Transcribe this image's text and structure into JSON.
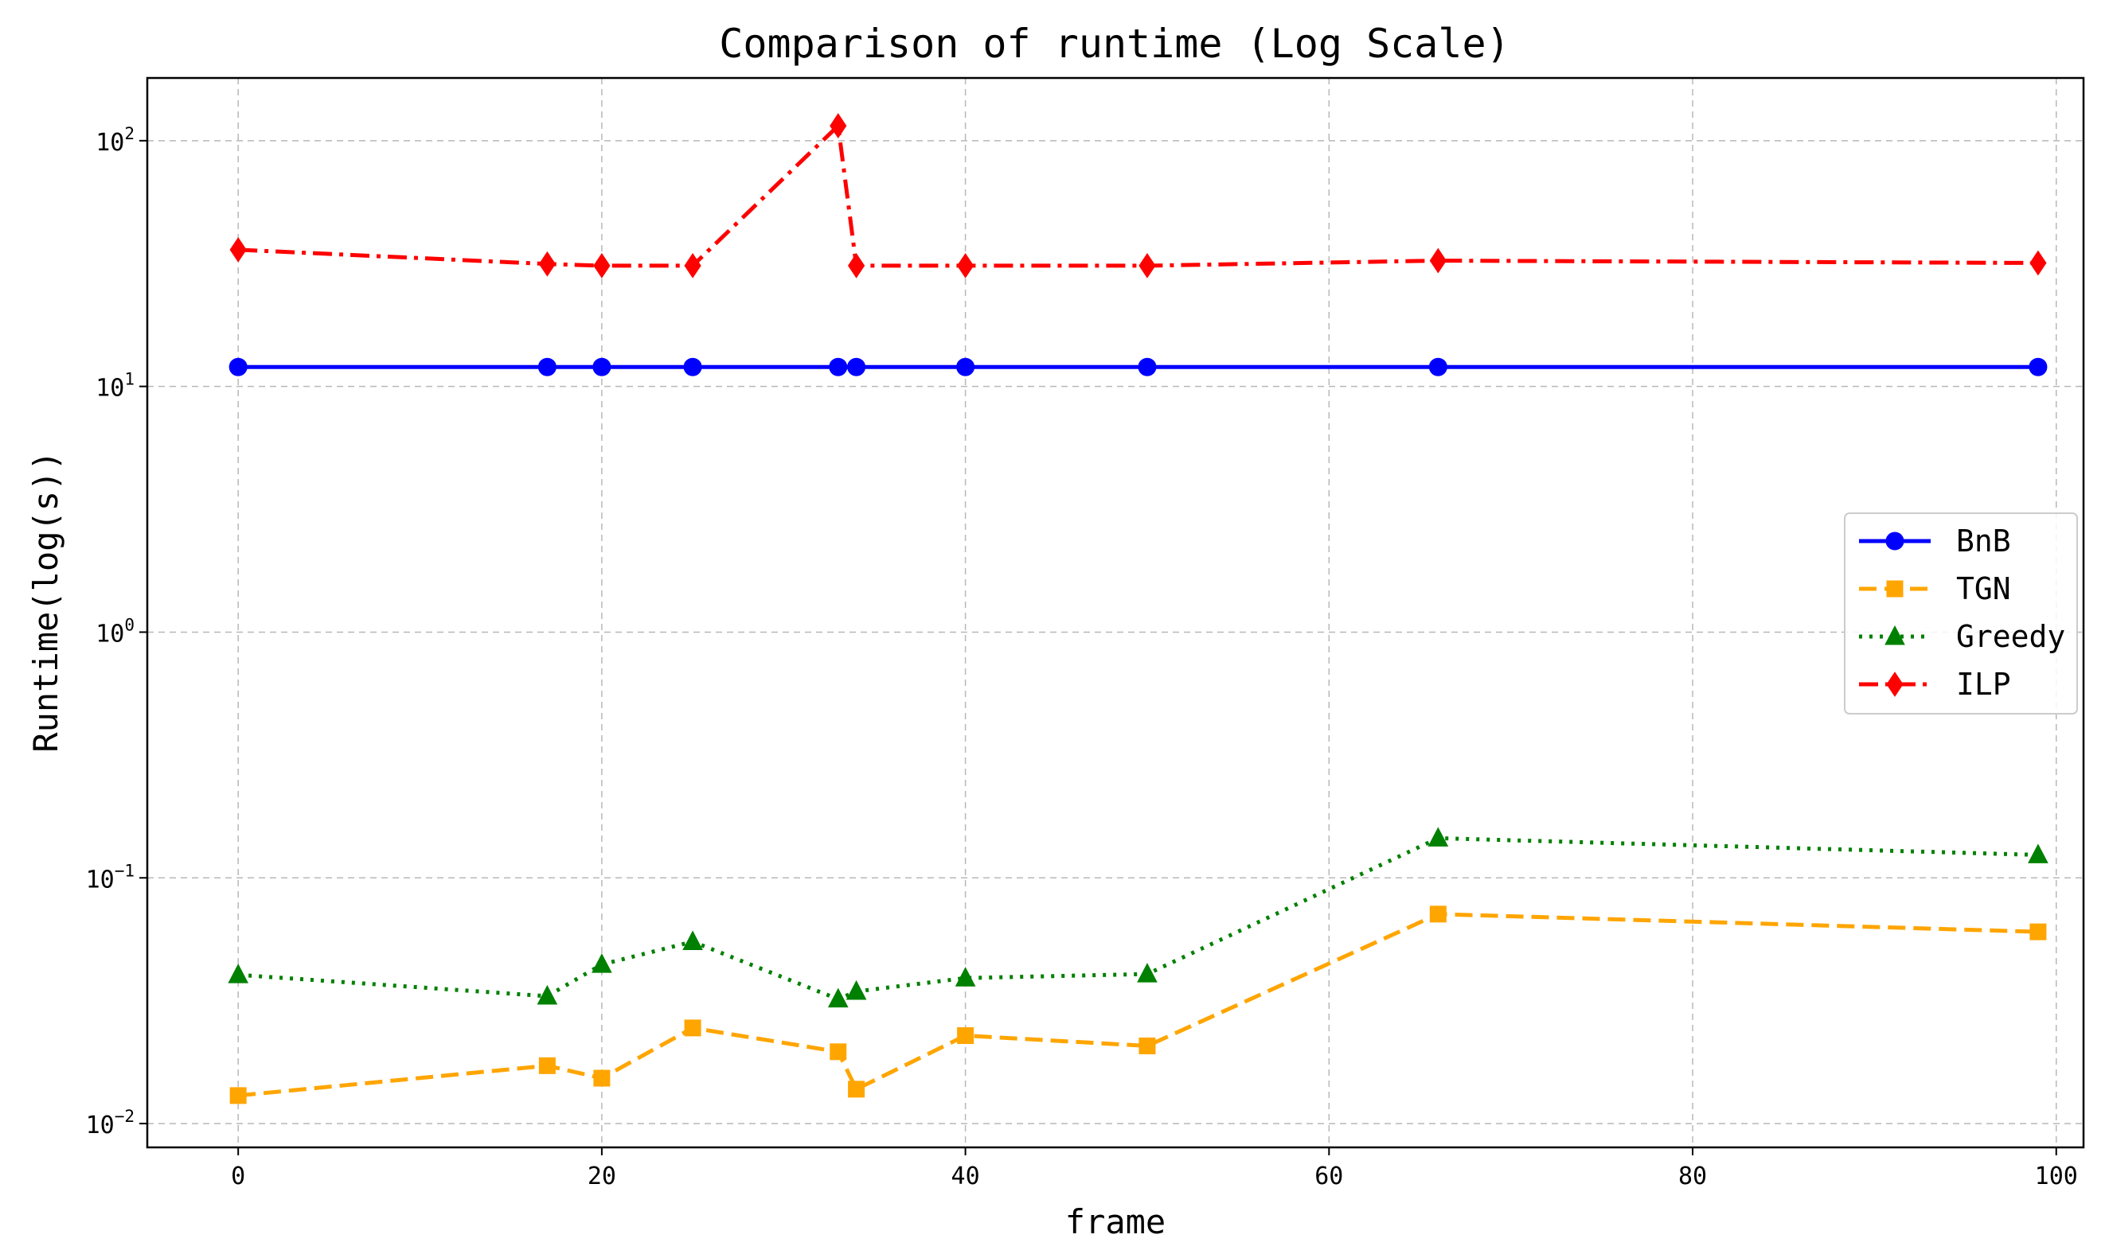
{
  "chart_data": {
    "type": "line",
    "title": "Comparison of runtime (Log Scale)",
    "xlabel": "frame",
    "ylabel": "Runtime(log(s))",
    "xlim": [
      -5,
      101.5
    ],
    "ylim": [
      0.008,
      180
    ],
    "yscale": "log",
    "grid": true,
    "legend_position": "center-right",
    "x_ticks": [
      0,
      20,
      40,
      60,
      80,
      100
    ],
    "x_tick_labels": [
      "0",
      "20",
      "40",
      "60",
      "80",
      "100"
    ],
    "y_ticks": [
      0.01,
      0.1,
      1,
      10,
      100
    ],
    "y_tick_labels": [
      {
        "base": "10",
        "exp": "−2"
      },
      {
        "base": "10",
        "exp": "−1"
      },
      {
        "base": "10",
        "exp": "0"
      },
      {
        "base": "10",
        "exp": "1"
      },
      {
        "base": "10",
        "exp": "2"
      }
    ],
    "x": [
      0,
      17,
      20,
      25,
      33,
      34,
      40,
      50,
      66,
      99
    ],
    "series": [
      {
        "name": "BnB",
        "color": "#0000ff",
        "marker": "circle",
        "dash": "solid",
        "values": [
          12,
          12,
          12,
          12,
          12,
          12,
          12,
          12,
          12,
          12
        ]
      },
      {
        "name": "TGN",
        "color": "#ffa500",
        "marker": "square",
        "dash": "dashed",
        "values": [
          0.013,
          0.0172,
          0.0153,
          0.0245,
          0.0196,
          0.0138,
          0.0228,
          0.0207,
          0.0712,
          0.0603
        ]
      },
      {
        "name": "Greedy",
        "color": "#008000",
        "marker": "triangle",
        "dash": "dotted",
        "values": [
          0.0403,
          0.033,
          0.0444,
          0.055,
          0.0321,
          0.0345,
          0.0391,
          0.0406,
          0.145,
          0.124
        ]
      },
      {
        "name": "ILP",
        "color": "#ff0000",
        "marker": "diamond",
        "dash": "dashdot",
        "values": [
          36,
          31.5,
          31,
          31,
          115,
          31,
          31,
          31,
          32.5,
          31.8
        ]
      }
    ]
  }
}
